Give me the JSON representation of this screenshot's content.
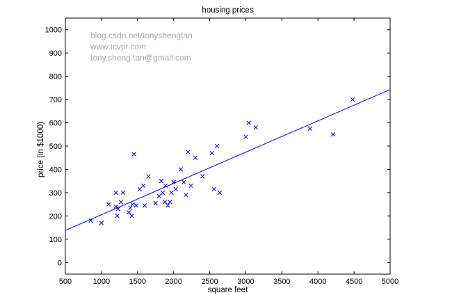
{
  "watermark": {
    "lines": [
      "blog.csdn.net/tonyshengtan",
      "www.tcvpr.com",
      "tony.sheng.tan@gmail.com"
    ],
    "color": "#a8a8a8"
  },
  "chart_data": {
    "type": "scatter",
    "title": "housing prices",
    "xlabel": "square feet",
    "ylabel": "price (in $1000)",
    "xlim": [
      500,
      5000
    ],
    "ylim": [
      -50,
      1050
    ],
    "xticks": [
      500,
      1000,
      1500,
      2000,
      2500,
      3000,
      3500,
      4000,
      4500,
      5000
    ],
    "yticks": [
      0,
      100,
      200,
      300,
      400,
      500,
      600,
      700,
      800,
      900,
      1000
    ],
    "grid": false,
    "marker": "x",
    "color": "#0000ff",
    "series": [
      {
        "points": [
          [
            852,
            180
          ],
          [
            1000,
            170
          ],
          [
            1100,
            250
          ],
          [
            1200,
            300
          ],
          [
            1200,
            240
          ],
          [
            1220,
            200
          ],
          [
            1230,
            230
          ],
          [
            1270,
            260
          ],
          [
            1300,
            300
          ],
          [
            1380,
            215
          ],
          [
            1400,
            235
          ],
          [
            1420,
            200
          ],
          [
            1430,
            250
          ],
          [
            1450,
            465
          ],
          [
            1480,
            245
          ],
          [
            1530,
            315
          ],
          [
            1580,
            330
          ],
          [
            1600,
            245
          ],
          [
            1650,
            370
          ],
          [
            1750,
            255
          ],
          [
            1800,
            285
          ],
          [
            1830,
            350
          ],
          [
            1850,
            300
          ],
          [
            1880,
            260
          ],
          [
            1890,
            330
          ],
          [
            1920,
            245
          ],
          [
            1950,
            260
          ],
          [
            1970,
            300
          ],
          [
            2000,
            345
          ],
          [
            2030,
            315
          ],
          [
            2100,
            400
          ],
          [
            2140,
            345
          ],
          [
            2170,
            290
          ],
          [
            2200,
            475
          ],
          [
            2240,
            330
          ],
          [
            2300,
            450
          ],
          [
            2400,
            370
          ],
          [
            2530,
            470
          ],
          [
            2560,
            315
          ],
          [
            2600,
            500
          ],
          [
            2640,
            300
          ],
          [
            3000,
            540
          ],
          [
            3040,
            600
          ],
          [
            3140,
            580
          ],
          [
            3890,
            575
          ],
          [
            4210,
            550
          ],
          [
            4480,
            700
          ]
        ]
      }
    ],
    "fit_line": {
      "x": [
        500,
        5000
      ],
      "y": [
        138,
        743
      ]
    }
  }
}
